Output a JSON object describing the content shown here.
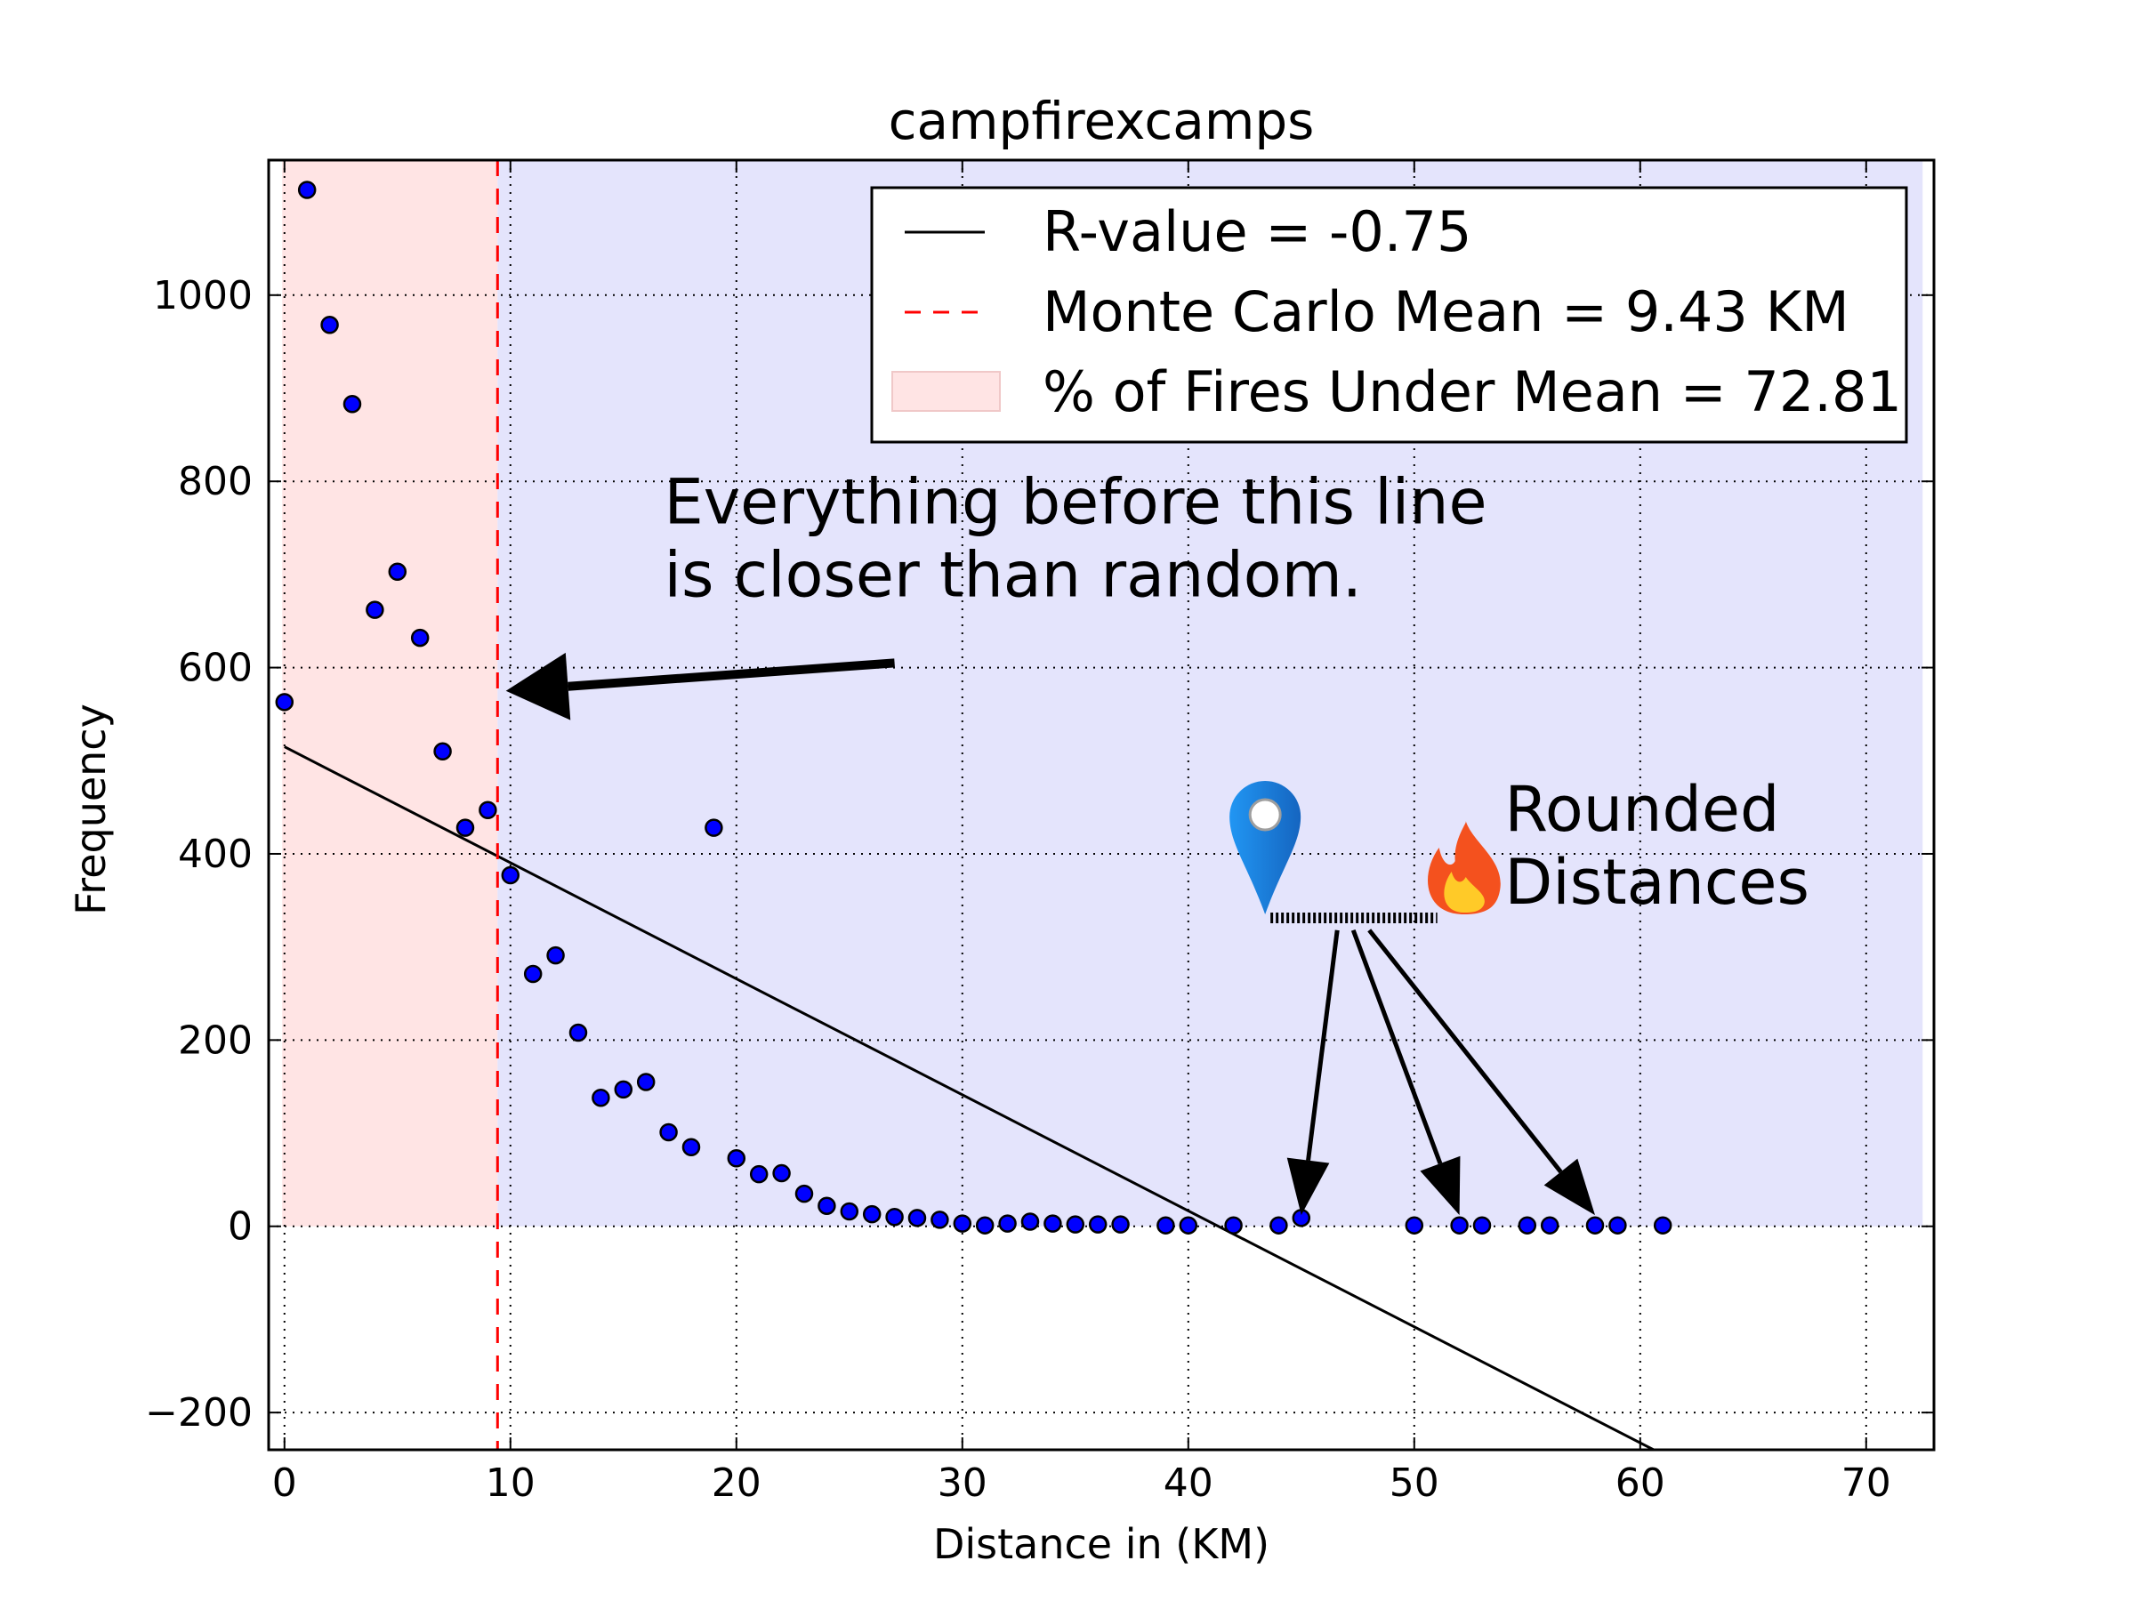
{
  "chart_data": {
    "type": "scatter",
    "title": "campfirexcamps",
    "xlabel": "Distance in (KM)",
    "ylabel": "Frequency",
    "xlim": [
      -0.7,
      73
    ],
    "ylim": [
      -240,
      1145
    ],
    "xticks": [
      0,
      10,
      20,
      30,
      40,
      50,
      60,
      70
    ],
    "yticks": [
      -200,
      0,
      200,
      400,
      600,
      800,
      1000
    ],
    "ytick_labels": [
      "−200",
      "0",
      "200",
      "400",
      "600",
      "800",
      "1000"
    ],
    "grid": true,
    "points": {
      "x": [
        0,
        1,
        2,
        3,
        4,
        5,
        6,
        7,
        8,
        9,
        10,
        11,
        12,
        13,
        14,
        15,
        16,
        17,
        18,
        19,
        20,
        21,
        22,
        23,
        24,
        25,
        26,
        27,
        28,
        29,
        30,
        31,
        32,
        33,
        34,
        35,
        36,
        37,
        39,
        40,
        42,
        44,
        45,
        50,
        52,
        53,
        55,
        56,
        58,
        59,
        61
      ],
      "y": [
        563,
        1113,
        968,
        883,
        662,
        703,
        632,
        510,
        428,
        447,
        377,
        271,
        291,
        208,
        138,
        147,
        155,
        101,
        85,
        428,
        73,
        56,
        57,
        35,
        22,
        16,
        13,
        10,
        9,
        7,
        3,
        1,
        3,
        5,
        3,
        2,
        2,
        2,
        1,
        1,
        1,
        1,
        9,
        1,
        1,
        1,
        1,
        1,
        1,
        1,
        1
      ],
      "color": "#0000ff",
      "edge_color": "#000000"
    },
    "regression_line": {
      "label": "R-value = -0.75",
      "x": [
        0,
        61
      ],
      "y": [
        515,
        -245
      ],
      "color": "#000000"
    },
    "mean_line": {
      "label": "Monte Carlo Mean = 9.43 KM",
      "x": 9.43,
      "color": "#ff0000"
    },
    "under_mean_region": {
      "label": "% of Fires Under Mean = 72.81",
      "x": [
        -0.1,
        9.43
      ],
      "y": [
        0,
        1145
      ],
      "color": "#ffe4e4"
    },
    "over_mean_region": {
      "x": [
        9.43,
        72.5
      ],
      "y": [
        0,
        1145
      ],
      "color": "#e4e4fc"
    },
    "legend": {
      "placement": "top-right",
      "entries": [
        "R-value = -0.75",
        "Monte Carlo Mean = 9.43 KM",
        "% of Fires Under Mean = 72.81"
      ]
    },
    "annotations": {
      "mean_note": {
        "lines": [
          "Everything before this line",
          "is closer than random."
        ],
        "text_at": [
          16.8,
          755
        ],
        "arrow_from": [
          27,
          605
        ],
        "arrow_to": [
          9.8,
          575
        ]
      },
      "rounded_note": {
        "lines": [
          "Rounded",
          "Distances"
        ],
        "text_at": [
          54,
          425
        ],
        "icons": [
          "map-pin-icon",
          "fire-icon"
        ],
        "pin_at": [
          43.4,
          335
        ],
        "fire_at": [
          52.2,
          335
        ],
        "arrow_from": [
          47.3,
          318
        ],
        "arrows_to": [
          [
            45,
            12
          ],
          [
            52,
            12
          ],
          [
            58,
            12
          ]
        ]
      }
    }
  }
}
